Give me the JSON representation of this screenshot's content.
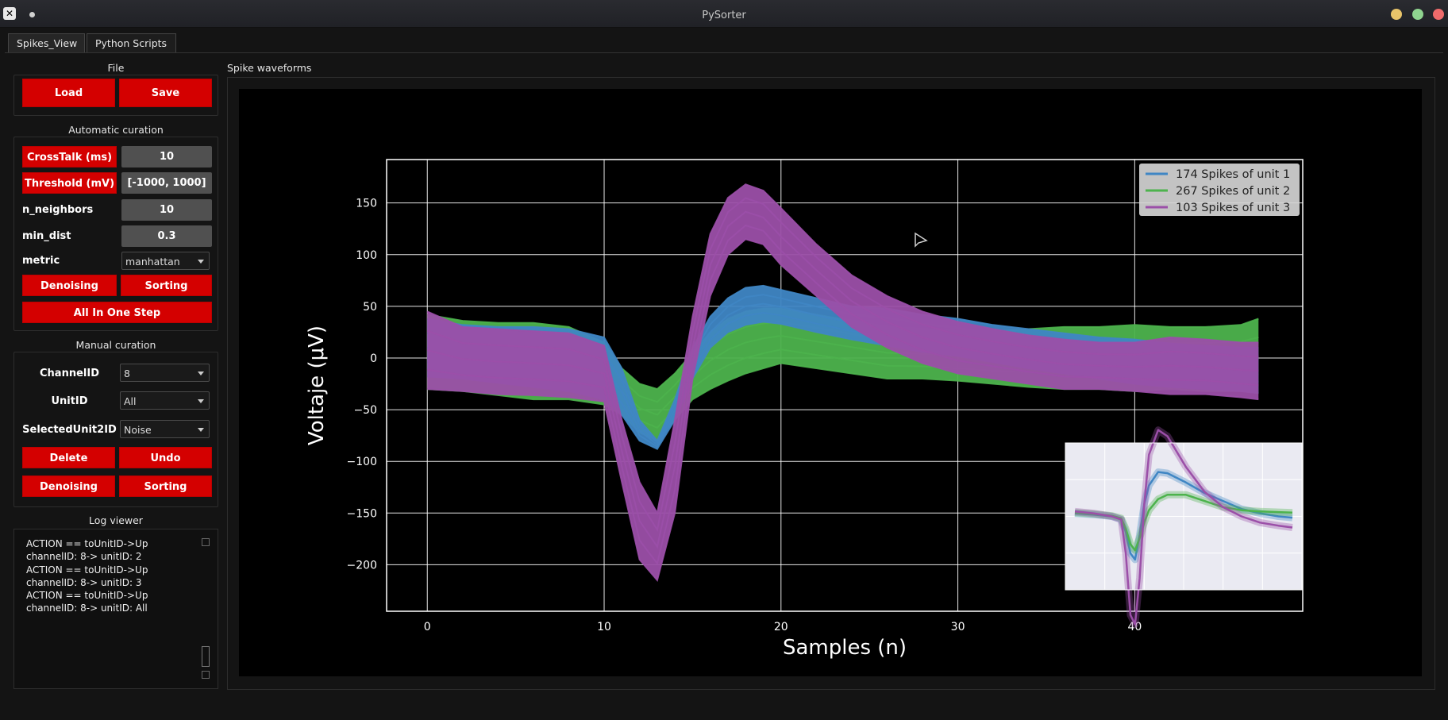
{
  "window": {
    "title": "PySorter"
  },
  "tabs": [
    {
      "label": "Spikes_View",
      "active": true
    },
    {
      "label": "Python Scripts",
      "active": false
    }
  ],
  "file": {
    "title": "File",
    "load_label": "Load",
    "save_label": "Save"
  },
  "auto": {
    "title": "Automatic curation",
    "crosstalk_label": "CrossTalk (ms)",
    "crosstalk_value": "10",
    "threshold_label": "Threshold (mV)",
    "threshold_value": "[-1000, 1000]",
    "neighbors_label": "n_neighbors",
    "neighbors_value": "10",
    "mindist_label": "min_dist",
    "mindist_value": "0.3",
    "metric_label": "metric",
    "metric_value": "manhattan",
    "denoising_label": "Denoising",
    "sorting_label": "Sorting",
    "allinone_label": "All In One Step"
  },
  "manual": {
    "title": "Manual curation",
    "channel_label": "ChannelID",
    "channel_value": "8",
    "unit_label": "UnitID",
    "unit_value": "All",
    "selected_label": "SelectedUnit2ID",
    "selected_value": "Noise",
    "delete_label": "Delete",
    "undo_label": "Undo",
    "denoising_label": "Denoising",
    "sorting_label": "Sorting"
  },
  "log": {
    "title": "Log viewer",
    "lines": [
      "ACTION == toUnitID->Up",
      "channelID: 8-> unitID: 2",
      "ACTION == toUnitID->Up",
      "channelID: 8-> unitID: 3",
      "ACTION == toUnitID->Up",
      "channelID: 8-> unitID: All"
    ]
  },
  "plot_panel": {
    "title": "Spike waveforms"
  },
  "colors": {
    "unit1": "#3f86c4",
    "unit2": "#4db34d",
    "unit3": "#9b4fa8",
    "button_red": "#d40000",
    "plot_bg": "#000000",
    "inset_bg": "#eaeaf2"
  },
  "chart_data": {
    "type": "line",
    "xlabel": "Samples (n)",
    "ylabel": "Voltaje (μV)",
    "xlim": [
      -2.3,
      49.5
    ],
    "ylim": [
      -245,
      192
    ],
    "xticks": [
      0,
      10,
      20,
      30,
      40
    ],
    "yticks": [
      -200,
      -150,
      -100,
      -50,
      0,
      50,
      100,
      150
    ],
    "grid": true,
    "legend_position": "top-right",
    "series": [
      {
        "name": "174 Spikes of unit 1",
        "color": "#3f86c4",
        "x": [
          0,
          2,
          4,
          6,
          8,
          10,
          11,
          12,
          13,
          14,
          15,
          16,
          17,
          18,
          19,
          20,
          22,
          24,
          26,
          28,
          30,
          32,
          34,
          36,
          38,
          40,
          42,
          44,
          46,
          47
        ],
        "upper": [
          38,
          32,
          30,
          30,
          28,
          20,
          -10,
          -60,
          -80,
          -40,
          10,
          40,
          58,
          68,
          70,
          66,
          58,
          50,
          48,
          42,
          38,
          32,
          28,
          24,
          20,
          18,
          14,
          12,
          10,
          10
        ],
        "lower": [
          -18,
          -20,
          -24,
          -28,
          -32,
          -40,
          -55,
          -80,
          -88,
          -60,
          -20,
          10,
          25,
          32,
          35,
          33,
          25,
          18,
          12,
          6,
          2,
          -4,
          -10,
          -15,
          -20,
          -25,
          -28,
          -30,
          -32,
          -34
        ]
      },
      {
        "name": "267 Spikes of unit 2",
        "color": "#4db34d",
        "x": [
          0,
          2,
          4,
          6,
          8,
          10,
          11,
          12,
          13,
          14,
          15,
          16,
          17,
          18,
          19,
          20,
          22,
          24,
          26,
          28,
          30,
          32,
          34,
          36,
          38,
          40,
          42,
          44,
          46,
          47
        ],
        "upper": [
          42,
          36,
          34,
          34,
          30,
          15,
          -10,
          -25,
          -30,
          -15,
          5,
          25,
          38,
          45,
          48,
          48,
          42,
          36,
          30,
          28,
          26,
          26,
          28,
          30,
          30,
          32,
          30,
          30,
          32,
          38
        ],
        "lower": [
          -30,
          -32,
          -36,
          -40,
          -40,
          -45,
          -55,
          -72,
          -80,
          -60,
          -40,
          -30,
          -22,
          -15,
          -10,
          -5,
          -10,
          -15,
          -20,
          -20,
          -22,
          -25,
          -28,
          -30,
          -30,
          -32,
          -30,
          -32,
          -32,
          -34
        ]
      },
      {
        "name": "103 Spikes of unit 3",
        "color": "#9b4fa8",
        "x": [
          0,
          2,
          4,
          6,
          8,
          10,
          11,
          12,
          13,
          14,
          15,
          16,
          17,
          18,
          19,
          20,
          22,
          24,
          26,
          28,
          30,
          32,
          34,
          36,
          38,
          40,
          42,
          44,
          46,
          47
        ],
        "upper": [
          45,
          30,
          28,
          26,
          24,
          12,
          -60,
          -120,
          -150,
          -60,
          40,
          120,
          155,
          168,
          162,
          145,
          110,
          80,
          60,
          45,
          35,
          28,
          22,
          18,
          15,
          15,
          20,
          18,
          15,
          15
        ],
        "lower": [
          -30,
          -32,
          -35,
          -36,
          -38,
          -42,
          -120,
          -195,
          -215,
          -150,
          -20,
          60,
          100,
          115,
          110,
          90,
          60,
          30,
          10,
          -5,
          -15,
          -20,
          -25,
          -30,
          -30,
          -32,
          -35,
          -35,
          -38,
          -40
        ]
      }
    ],
    "inset": {
      "bg": "#eaeaf2",
      "series": [
        {
          "color": "#3f86c4",
          "x": [
            0,
            4,
            8,
            10,
            11,
            12,
            13,
            14,
            15,
            16,
            18,
            20,
            24,
            28,
            32,
            36,
            40,
            44,
            47
          ],
          "y": [
            5,
            3,
            0,
            -5,
            -25,
            -60,
            -70,
            -30,
            20,
            50,
            72,
            70,
            55,
            38,
            25,
            12,
            5,
            0,
            -2
          ]
        },
        {
          "color": "#4db34d",
          "x": [
            0,
            4,
            8,
            10,
            11,
            12,
            13,
            14,
            15,
            16,
            18,
            20,
            24,
            28,
            32,
            36,
            40,
            44,
            47
          ],
          "y": [
            6,
            4,
            1,
            -3,
            -20,
            -45,
            -55,
            -35,
            -10,
            10,
            28,
            35,
            35,
            25,
            15,
            10,
            8,
            7,
            6
          ]
        },
        {
          "color": "#9b4fa8",
          "x": [
            0,
            4,
            8,
            10,
            11,
            12,
            13,
            14,
            15,
            16,
            18,
            20,
            24,
            28,
            32,
            36,
            40,
            44,
            47
          ],
          "y": [
            8,
            5,
            0,
            -5,
            -60,
            -160,
            -175,
            -100,
            20,
            100,
            140,
            130,
            80,
            40,
            15,
            0,
            -10,
            -15,
            -18
          ]
        }
      ]
    }
  }
}
